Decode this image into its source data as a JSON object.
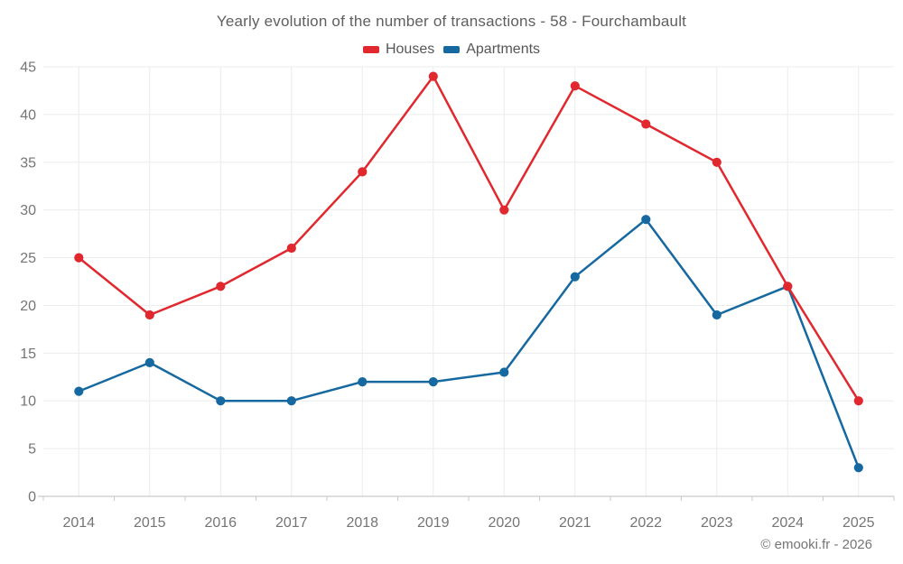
{
  "page": {
    "copyright": "© emooki.fr - 2026"
  },
  "chart_data": {
    "type": "line",
    "title": "Yearly evolution of the number of transactions - 58 - Fourchambault",
    "xlabel": "",
    "ylabel": "",
    "categories": [
      "2014",
      "2015",
      "2016",
      "2017",
      "2018",
      "2019",
      "2020",
      "2021",
      "2022",
      "2023",
      "2024",
      "2025"
    ],
    "series": [
      {
        "name": "Houses",
        "color": "#e0282e",
        "values": [
          25,
          19,
          22,
          26,
          34,
          44,
          30,
          43,
          39,
          35,
          22,
          10
        ]
      },
      {
        "name": "Apartments",
        "color": "#1569a0",
        "values": [
          11,
          14,
          10,
          10,
          12,
          12,
          13,
          23,
          29,
          19,
          22,
          3
        ]
      }
    ],
    "ylim": [
      0,
      45
    ],
    "ytick_step": 5,
    "yticks": [
      0,
      5,
      10,
      15,
      20,
      25,
      30,
      35,
      40,
      45
    ],
    "grid": true,
    "legend_position": "top",
    "colors": {
      "grid": "#ececec",
      "axis": "#c9c9c9",
      "tick_label": "#757575",
      "title": "#5f5f5f"
    }
  }
}
